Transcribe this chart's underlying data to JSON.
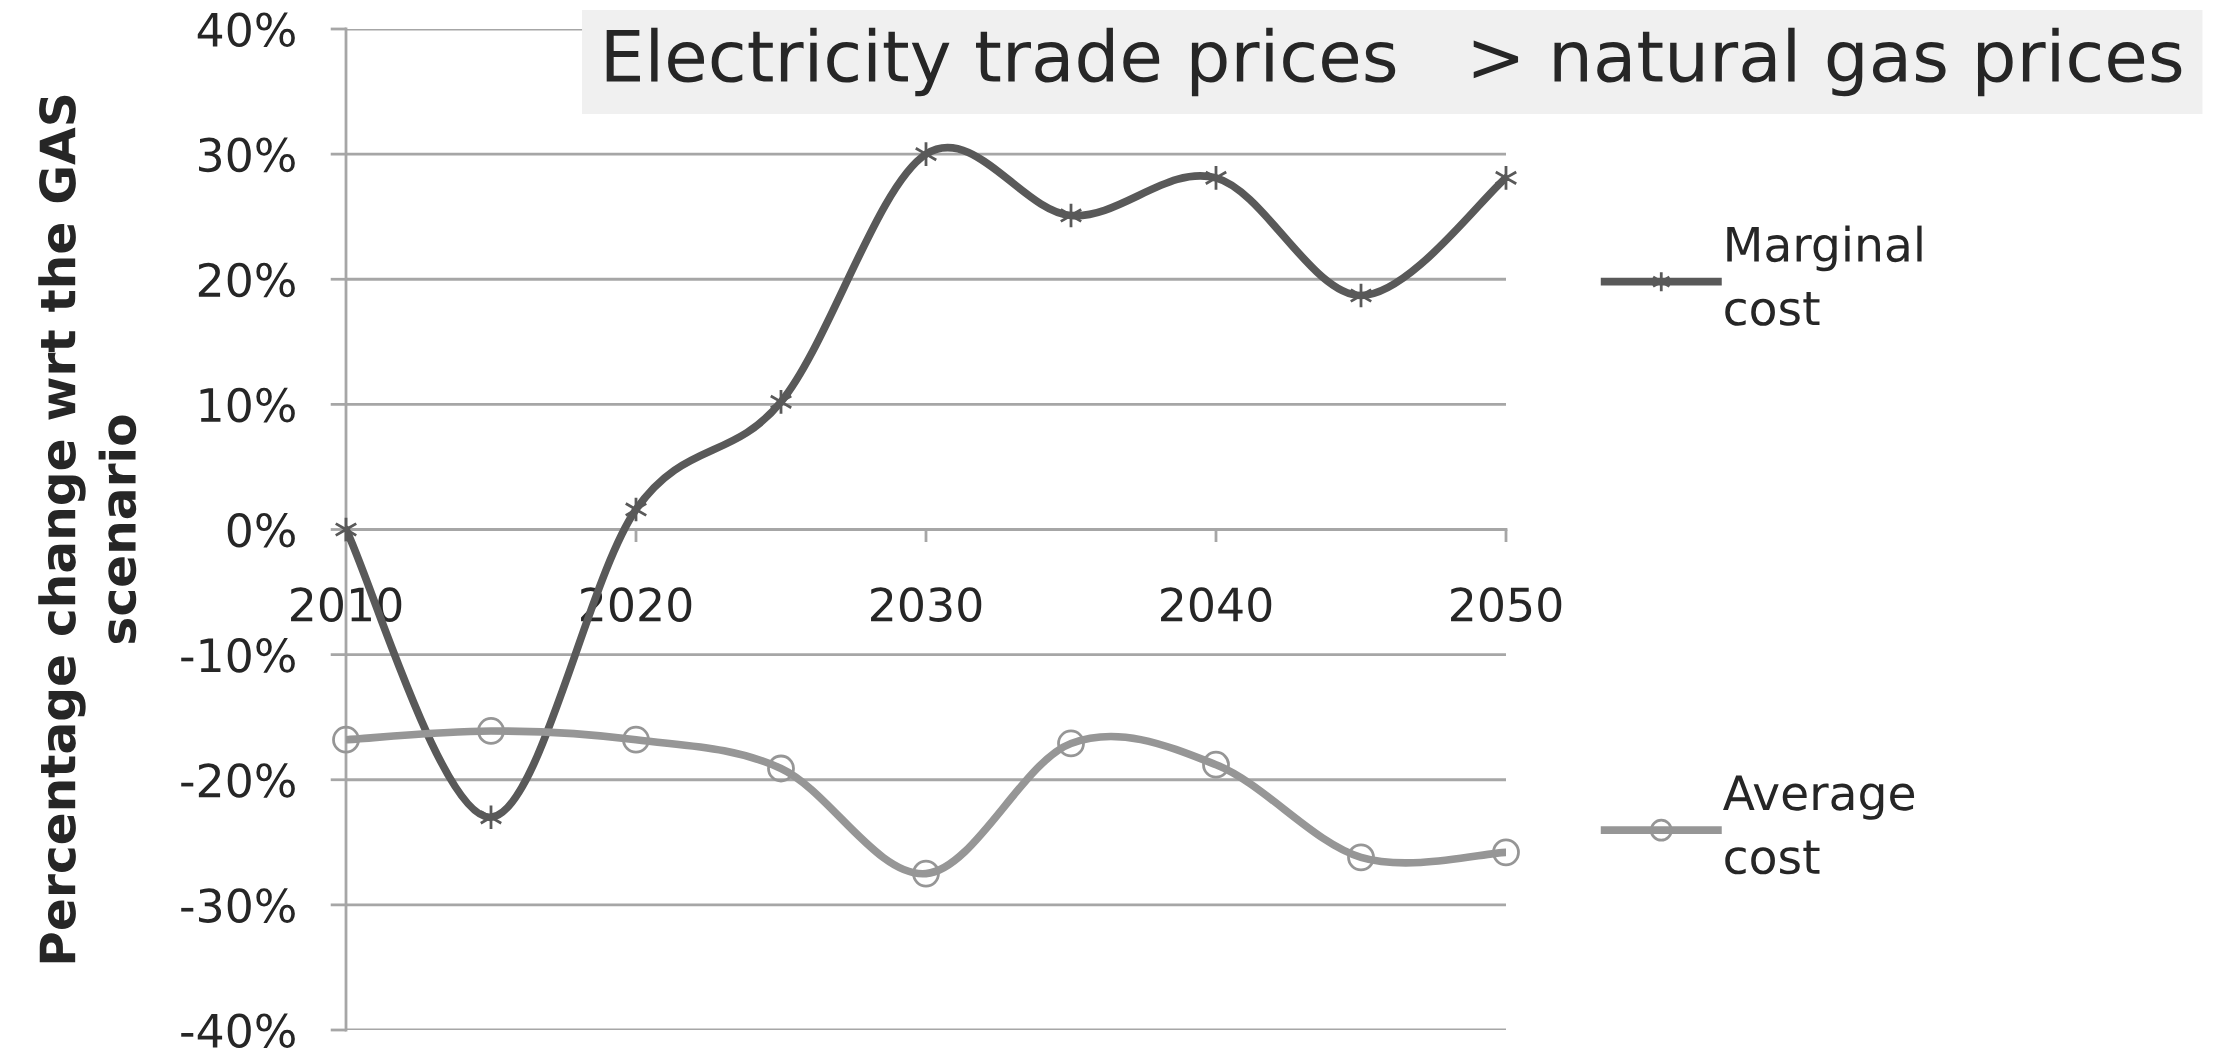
{
  "chart_data": {
    "type": "line",
    "title": "Electricity trade prices   > natural gas prices",
    "ylabel": "Percentage change wrt the GAS scenario",
    "x": [
      2010,
      2015,
      2020,
      2025,
      2030,
      2035,
      2040,
      2045,
      2050
    ],
    "series": [
      {
        "name": "Marginal cost",
        "color": "#595959",
        "marker": "cross",
        "values": [
          0,
          -23,
          1.6,
          10.2,
          30,
          25.1,
          28.1,
          18.7,
          28.1
        ]
      },
      {
        "name": "Average cost",
        "color": "#969696",
        "marker": "circle",
        "values": [
          -16.8,
          -16.1,
          -16.8,
          -19.1,
          -27.5,
          -17.1,
          -18.8,
          -26.2,
          -25.8
        ]
      }
    ],
    "xlim": [
      2010,
      2050
    ],
    "xticks": [
      2010,
      2020,
      2030,
      2040,
      2050
    ],
    "ylim": [
      -40,
      40
    ],
    "yticks": [
      {
        "value": -40,
        "label": "-40%"
      },
      {
        "value": -30,
        "label": "-30%"
      },
      {
        "value": -20,
        "label": "-20%"
      },
      {
        "value": -10,
        "label": "-10%"
      },
      {
        "value": 0,
        "label": "0%"
      },
      {
        "value": 10,
        "label": "10%"
      },
      {
        "value": 20,
        "label": "20%"
      },
      {
        "value": 30,
        "label": "30%"
      },
      {
        "value": 40,
        "label": "40%"
      }
    ],
    "grid": "y",
    "legend": "right",
    "line_style": "solid"
  }
}
